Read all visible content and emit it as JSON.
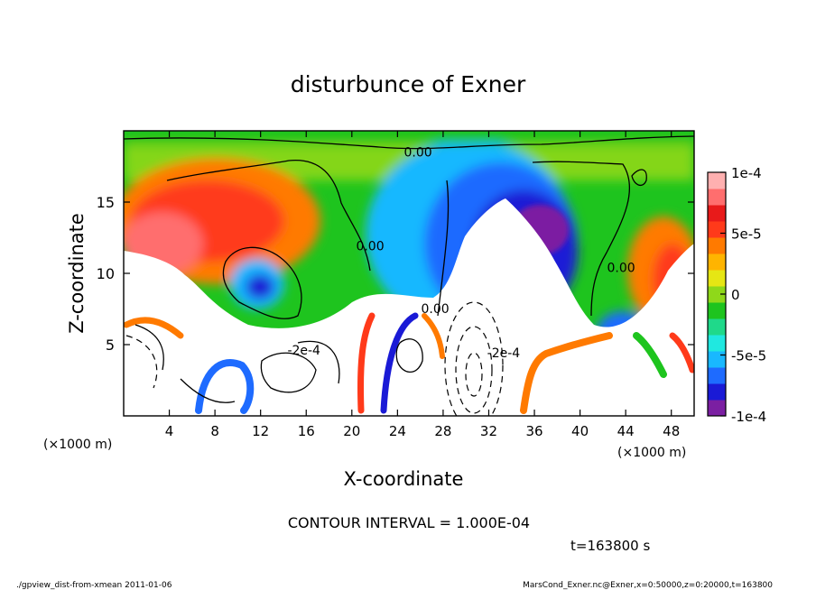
{
  "chart_data": {
    "type": "heatmap",
    "title": "disturbunce of Exner",
    "xlabel": "X-coordinate",
    "ylabel": "Z-coordinate",
    "x_unit": "(×1000 m)",
    "y_unit": "(×1000 m)",
    "xlim": [
      0,
      50
    ],
    "ylim": [
      0,
      20
    ],
    "x_ticks": [
      4,
      8,
      12,
      16,
      20,
      24,
      28,
      32,
      36,
      40,
      44,
      48
    ],
    "y_ticks": [
      5,
      10,
      15
    ],
    "colorbar": {
      "min": -0.0001,
      "max": 0.0001,
      "tick_values": [
        0.0001,
        5e-05,
        0,
        -5e-05,
        -0.0001
      ],
      "tick_labels": [
        "1e-4",
        "5e-5",
        "0",
        "-5e-5",
        "-1e-4"
      ],
      "colors": [
        "#7b1fa2",
        "#1a1ad6",
        "#1e6bff",
        "#19b8ff",
        "#20e8e0",
        "#1fd98a",
        "#1ec41e",
        "#8fd81a",
        "#e6e614",
        "#ffb400",
        "#ff7a00",
        "#ff3a1a",
        "#e81a1a",
        "#ff6e6e",
        "#ffb0b0"
      ]
    },
    "contour_labels": [
      {
        "text": "0.00",
        "x": 25.8,
        "z": 18.2
      },
      {
        "text": "0.00",
        "x": 21.6,
        "z": 11.6
      },
      {
        "text": "0.00",
        "x": 43.6,
        "z": 10.1
      },
      {
        "text": "0.00",
        "x": 27.3,
        "z": 7.2
      },
      {
        "text": "-2e-4",
        "x": 15.8,
        "z": 4.3
      },
      {
        "text": "-2e-4",
        "x": 33.3,
        "z": 4.1
      }
    ],
    "contour_interval": "CONTOUR INTERVAL = 1.000E-04",
    "time_label": "t=163800 s",
    "grid": false
  },
  "footer": {
    "left": "./gpview_dist-from-xmean   2011-01-06",
    "right": "MarsCond_Exner.nc@Exner,x=0:50000,z=0:20000,t=163800"
  }
}
